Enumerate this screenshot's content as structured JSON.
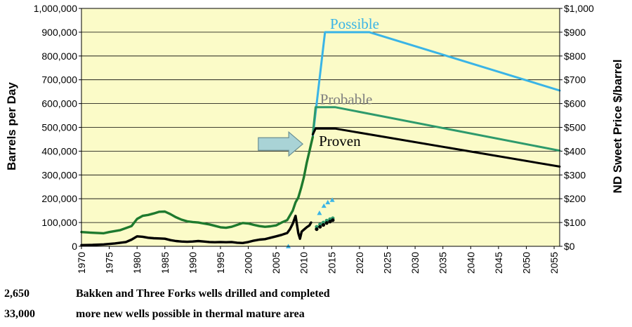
{
  "chart_data": {
    "type": "line",
    "plot_background": "#fbfbc8",
    "grid": true,
    "xlim": [
      1970,
      2056
    ],
    "x_ticks": [
      "1970",
      "1975",
      "1980",
      "1985",
      "1990",
      "1995",
      "2000",
      "2005",
      "2010",
      "2015",
      "2020",
      "2025",
      "2030",
      "2035",
      "2040",
      "2045",
      "2050",
      "2055"
    ],
    "left_axis": {
      "label": "Barrels per Day",
      "ylim": [
        0,
        1000000
      ],
      "ticks": [
        "0",
        "100,000",
        "200,000",
        "300,000",
        "400,000",
        "500,000",
        "600,000",
        "700,000",
        "800,000",
        "900,000",
        "1,000,000"
      ]
    },
    "right_axis": {
      "label": "ND Sweet Price $/barrel",
      "ylim": [
        0,
        1000
      ],
      "ticks": [
        "$0",
        "$100",
        "$200",
        "$300",
        "$400",
        "$500",
        "$600",
        "$700",
        "$800",
        "$900",
        "$1,000"
      ]
    },
    "series": [
      {
        "name": "Possible",
        "color": "#3ab4e6",
        "axis": "left",
        "x": [
          2011.6,
          2013.8,
          2021.8,
          2056
        ],
        "y": [
          460000,
          900000,
          900000,
          655000
        ]
      },
      {
        "name": "Probable",
        "color": "#2e9a6c",
        "axis": "left",
        "label_color": "#7f7f7f",
        "x": [
          2011.6,
          2012.1,
          2015.6,
          2056
        ],
        "y": [
          470000,
          585000,
          585000,
          402000
        ]
      },
      {
        "name": "Proven",
        "color": "#000000",
        "axis": "left",
        "x": [
          2011.6,
          2012.1,
          2015.6,
          2056
        ],
        "y": [
          470000,
          495000,
          495000,
          335000
        ]
      },
      {
        "color": "#1e7a2e",
        "axis": "right",
        "x": [
          1970,
          1972,
          1974,
          1975,
          1977,
          1979,
          1980,
          1981,
          1982,
          1983,
          1984,
          1985,
          1986,
          1987,
          1988,
          1989,
          1990,
          1991,
          1992,
          1993,
          1994,
          1995,
          1996,
          1997,
          1998,
          1999,
          2000,
          2001,
          2002,
          2003,
          2004,
          2005,
          2006,
          2007,
          2008,
          2008.5,
          2009,
          2009.5,
          2010,
          2010.5,
          2011,
          2011.3,
          2011.6
        ],
        "y": [
          60,
          57,
          55,
          60,
          68,
          85,
          115,
          128,
          132,
          138,
          145,
          146,
          135,
          122,
          112,
          105,
          102,
          100,
          96,
          92,
          86,
          80,
          78,
          82,
          90,
          98,
          96,
          90,
          85,
          82,
          84,
          88,
          100,
          110,
          150,
          185,
          205,
          245,
          290,
          350,
          400,
          430,
          460
        ]
      },
      {
        "color": "#000000",
        "axis": "left",
        "x": [
          1970,
          1972,
          1974,
          1976,
          1978,
          1979,
          1980,
          1981,
          1982,
          1983,
          1984,
          1985,
          1986,
          1987,
          1988,
          1989,
          1990,
          1991,
          1992,
          1993,
          1994,
          1995,
          1996,
          1997,
          1998,
          1999,
          2000,
          2001,
          2002,
          2003,
          2004,
          2005,
          2006,
          2007,
          2007.5,
          2008,
          2008.5,
          2009,
          2009.3,
          2009.6,
          2010,
          2010.5,
          2011,
          2011.3
        ],
        "y": [
          5000,
          6000,
          8000,
          12000,
          18000,
          28000,
          42000,
          40000,
          36000,
          34000,
          33000,
          32000,
          26000,
          22000,
          20000,
          19000,
          20000,
          22000,
          20000,
          18000,
          17000,
          18000,
          17000,
          18000,
          15000,
          14000,
          18000,
          24000,
          28000,
          30000,
          36000,
          42000,
          48000,
          56000,
          72000,
          95000,
          128000,
          55000,
          32000,
          62000,
          70000,
          80000,
          88000,
          100000
        ]
      },
      {
        "color": "#3ab4e6",
        "axis": "right",
        "marker": "triangle",
        "x": [
          2007.2,
          2012.8,
          2013.6,
          2014.3,
          2015.1
        ],
        "y": [
          0,
          140,
          170,
          185,
          195
        ]
      },
      {
        "color": "#2e9a6c",
        "axis": "right",
        "marker": "circle",
        "x": [
          2012.3,
          2012.9,
          2013.5,
          2014.1,
          2014.7,
          2015.2
        ],
        "y": [
          82,
          92,
          100,
          108,
          114,
          118
        ]
      },
      {
        "color": "#000000",
        "axis": "right",
        "marker": "circle",
        "x": [
          2012.3,
          2012.9,
          2013.5,
          2014.1,
          2014.7,
          2015.2
        ],
        "y": [
          72,
          82,
          90,
          98,
          104,
          110
        ]
      }
    ],
    "arrow": {
      "color": "#a9d3d6",
      "x": [
        2001.8,
        2009.8
      ],
      "y": [
        430000,
        430000
      ]
    }
  },
  "notes": [
    {
      "number": "2,650",
      "text": "Bakken and Three Forks wells drilled and completed"
    },
    {
      "number": "33,000",
      "text": "more new wells possible in thermal mature area"
    }
  ]
}
